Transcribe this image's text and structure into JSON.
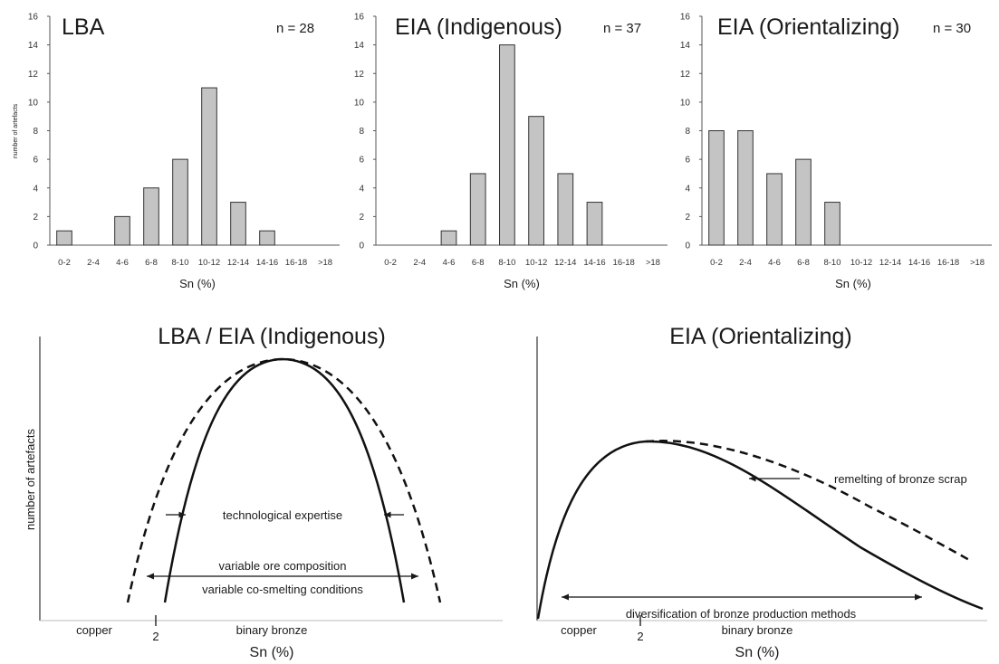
{
  "chart_data": [
    {
      "type": "bar",
      "id": "lba",
      "title": "LBA",
      "n_label": "n = 28",
      "xlabel": "Sn (%)",
      "ylabel": "number of artefacts",
      "ylim": [
        0,
        16
      ],
      "yticks": [
        0,
        2,
        4,
        6,
        8,
        10,
        12,
        14,
        16
      ],
      "categories": [
        "0-2",
        "2-4",
        "4-6",
        "6-8",
        "8-10",
        "10-12",
        "12-14",
        "14-16",
        "16-18",
        ">18"
      ],
      "values": [
        1,
        0,
        2,
        4,
        6,
        11,
        3,
        1,
        0,
        0
      ],
      "bar_color": "#c4c4c4"
    },
    {
      "type": "bar",
      "id": "eia-indigenous",
      "title": "EIA (Indigenous)",
      "n_label": "n = 37",
      "xlabel": "Sn (%)",
      "ylabel": "",
      "ylim": [
        0,
        16
      ],
      "yticks": [
        0,
        2,
        4,
        6,
        8,
        10,
        12,
        14,
        16
      ],
      "categories": [
        "0-2",
        "2-4",
        "4-6",
        "6-8",
        "8-10",
        "10-12",
        "12-14",
        "14-16",
        "16-18",
        ">18"
      ],
      "values": [
        0,
        0,
        1,
        5,
        14,
        9,
        5,
        3,
        0,
        0
      ],
      "bar_color": "#c4c4c4"
    },
    {
      "type": "bar",
      "id": "eia-orientalizing",
      "title": "EIA (Orientalizing)",
      "n_label": "n = 30",
      "xlabel": "Sn (%)",
      "ylabel": "",
      "ylim": [
        0,
        16
      ],
      "yticks": [
        0,
        2,
        4,
        6,
        8,
        10,
        12,
        14,
        16
      ],
      "categories": [
        "0-2",
        "2-4",
        "4-6",
        "6-8",
        "8-10",
        "10-12",
        "12-14",
        "14-16",
        "16-18",
        ">18"
      ],
      "values": [
        8,
        8,
        5,
        6,
        3,
        0,
        0,
        0,
        0,
        0
      ],
      "bar_color": "#c4c4c4"
    }
  ],
  "concept": {
    "left": {
      "title": "LBA / EIA (Indigenous)",
      "ylabel": "number of artefacts",
      "xlabel": "Sn (%)",
      "copper": "copper",
      "tick2": "2",
      "binary_bronze": "binary bronze",
      "ann_expertise": "technological expertise",
      "ann_ore": "variable ore composition",
      "ann_cosmelt": "variable co-smelting conditions"
    },
    "right": {
      "title": "EIA (Orientalizing)",
      "xlabel": "Sn (%)",
      "copper": "copper",
      "tick2": "2",
      "binary_bronze": "binary bronze",
      "ann_remelt": "remelting of bronze scrap",
      "ann_diversification": "diversification of bronze production methods"
    }
  }
}
